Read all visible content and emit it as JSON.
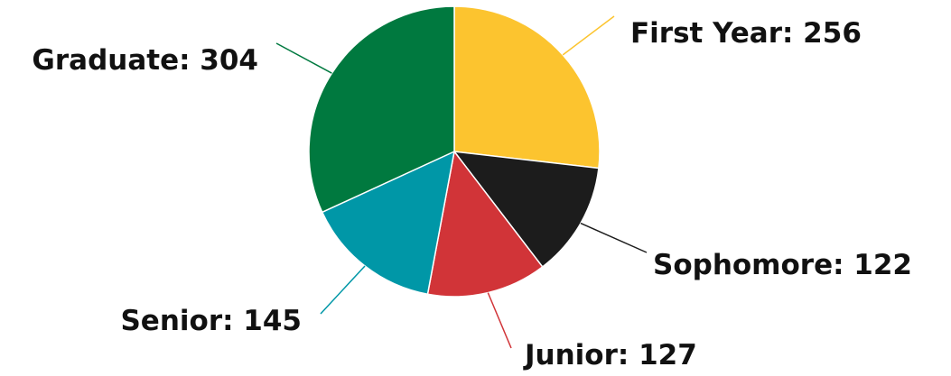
{
  "chart_data": {
    "type": "pie",
    "slices": [
      {
        "label": "First Year",
        "value": 256,
        "color": "#FCC42F",
        "display": "First Year: 256"
      },
      {
        "label": "Sophomore",
        "value": 122,
        "color": "#1C1C1C",
        "display": "Sophomore: 122"
      },
      {
        "label": "Junior",
        "value": 127,
        "color": "#D13438",
        "display": "Junior: 127"
      },
      {
        "label": "Senior",
        "value": 145,
        "color": "#0097A7",
        "display": "Senior: 145"
      },
      {
        "label": "Graduate",
        "value": 304,
        "color": "#00793F",
        "display": "Graduate: 304"
      }
    ],
    "start_angle": "12 o'clock",
    "direction": "clockwise",
    "legend": "none",
    "data_labels": "outside with leader lines"
  }
}
